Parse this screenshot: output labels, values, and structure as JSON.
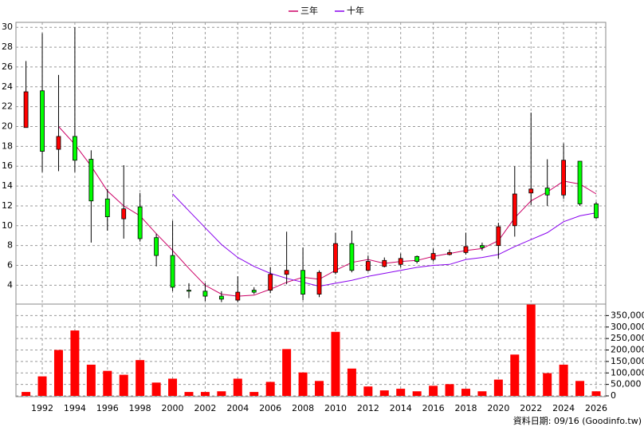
{
  "chart_data": {
    "type": "candlestick",
    "categories": [
      null,
      "1992",
      null,
      "1994",
      null,
      "1996",
      null,
      "1998",
      null,
      "2000",
      null,
      "2002",
      null,
      "2004",
      null,
      "2006",
      null,
      "2008",
      null,
      "2010",
      null,
      "2012",
      null,
      "2014",
      null,
      "2016",
      null,
      "2018",
      null,
      "2020",
      null,
      "2022",
      null,
      "2024",
      null,
      "2026"
    ],
    "open": [
      19.9,
      23.6,
      17.7,
      19.0,
      16.7,
      12.7,
      10.7,
      11.9,
      8.8,
      7.0,
      3.5,
      3.4,
      2.9,
      2.5,
      3.5,
      3.5,
      5.1,
      5.5,
      3.1,
      5.3,
      8.2,
      5.5,
      5.9,
      6.1,
      6.9,
      6.6,
      7.1,
      7.3,
      8.0,
      8.0,
      10.0,
      13.3,
      13.8,
      13.1,
      16.5,
      12.2
    ],
    "high": [
      26.6,
      29.4,
      25.2,
      30.0,
      17.6,
      13.7,
      16.1,
      13.3,
      9.2,
      10.5,
      4.2,
      4.2,
      3.4,
      4.9,
      3.8,
      5.8,
      9.4,
      7.8,
      5.5,
      9.3,
      9.5,
      7.0,
      6.8,
      7.2,
      7.0,
      7.7,
      7.6,
      9.3,
      8.3,
      10.3,
      16.0,
      21.4,
      16.7,
      18.3,
      16.5,
      12.4
    ],
    "low": [
      19.9,
      15.4,
      15.5,
      15.4,
      8.3,
      9.5,
      8.7,
      8.4,
      5.9,
      3.4,
      2.7,
      2.4,
      2.3,
      2.3,
      3.1,
      3.2,
      4.1,
      2.5,
      2.8,
      5.1,
      5.3,
      5.4,
      5.8,
      5.8,
      6.2,
      6.4,
      7.0,
      7.1,
      7.5,
      6.7,
      8.9,
      12.1,
      12.0,
      12.7,
      12.0,
      10.7
    ],
    "close": [
      23.5,
      17.5,
      19.0,
      16.6,
      12.5,
      10.9,
      11.7,
      8.7,
      7.0,
      3.8,
      3.4,
      2.9,
      2.6,
      3.3,
      3.3,
      5.1,
      5.5,
      3.1,
      5.3,
      8.2,
      5.5,
      6.4,
      6.5,
      6.7,
      6.4,
      7.2,
      7.3,
      7.9,
      7.8,
      9.9,
      13.2,
      13.7,
      13.1,
      16.6,
      12.2,
      10.8
    ],
    "up_color": "#ff0000",
    "down_color": "#00ff00",
    "series": [
      {
        "name": "三年",
        "color": "#cc0066",
        "values": [
          null,
          null,
          20.0,
          18.2,
          16.0,
          13.5,
          12.0,
          11.0,
          9.2,
          7.5,
          5.7,
          4.0,
          3.1,
          2.9,
          3.0,
          3.6,
          4.3,
          4.8,
          4.6,
          5.5,
          6.3,
          6.6,
          6.2,
          6.4,
          6.5,
          6.9,
          7.2,
          7.5,
          7.7,
          8.5,
          10.8,
          12.5,
          13.4,
          14.5,
          14.2,
          13.2
        ]
      },
      {
        "name": "十年",
        "color": "#8800ee",
        "values": [
          null,
          null,
          null,
          null,
          null,
          null,
          null,
          null,
          null,
          13.2,
          11.5,
          9.8,
          8.1,
          6.8,
          5.9,
          5.2,
          4.7,
          4.3,
          3.9,
          4.2,
          4.5,
          4.9,
          5.2,
          5.5,
          5.8,
          6.0,
          6.1,
          6.6,
          6.8,
          7.1,
          7.9,
          8.6,
          9.3,
          10.4,
          11.0,
          11.3
        ]
      }
    ],
    "ylim": [
      2.1,
      30.5
    ],
    "yticks": [
      4,
      6,
      8,
      10,
      12,
      14,
      16,
      18,
      20,
      22,
      24,
      26,
      28,
      30
    ],
    "grid": true,
    "volume": {
      "color": "#ff0000",
      "values": [
        17000,
        85000,
        200000,
        285000,
        136000,
        109000,
        92000,
        156000,
        58000,
        75000,
        17000,
        17000,
        20000,
        75000,
        17000,
        61000,
        204000,
        102000,
        65000,
        279000,
        119000,
        41000,
        24000,
        31000,
        20000,
        44000,
        51000,
        31000,
        20000,
        71000,
        180000,
        398000,
        99000,
        136000,
        65000,
        20000
      ],
      "ylim": [
        0,
        400000
      ],
      "yticks": [
        0,
        {
          "value": 50000,
          "label": "50,000"
        },
        {
          "value": 100000,
          "label": "100,000"
        },
        {
          "value": 150000,
          "label": "150,000"
        },
        {
          "value": 200000,
          "label": "200,000"
        },
        {
          "value": 250000,
          "label": "250,000"
        },
        {
          "value": 300000,
          "label": "300,000"
        },
        {
          "value": 350000,
          "label": "350,000"
        }
      ]
    },
    "source": "資料日期: 09/16  (Goodinfo.tw)"
  }
}
